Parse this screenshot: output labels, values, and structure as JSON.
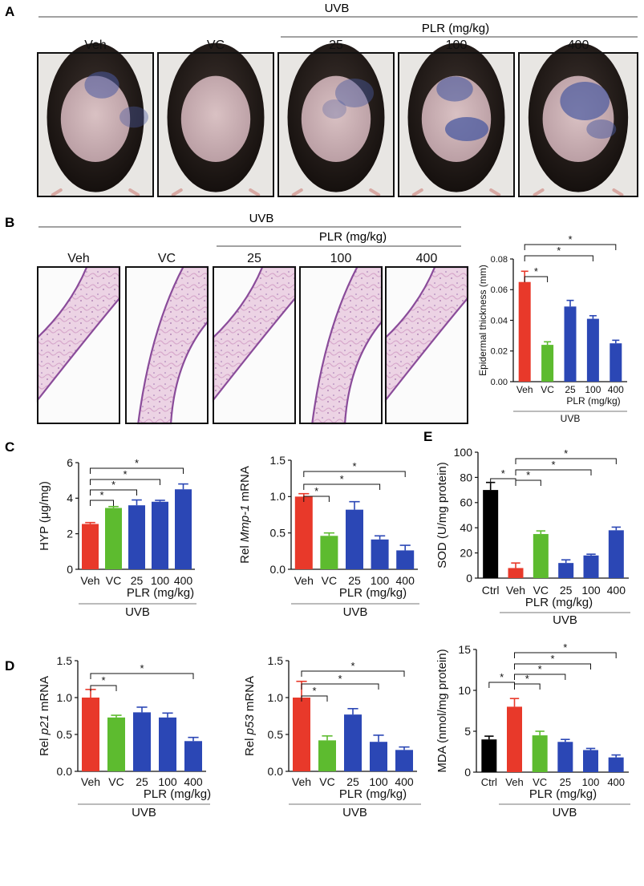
{
  "panels": {
    "A": {
      "letter": "A",
      "group_label": "UVB",
      "sub_label": "PLR (mg/kg)",
      "photo_labels": [
        "Veh",
        "VC",
        "25",
        "100",
        "400"
      ]
    },
    "B": {
      "letter": "B",
      "group_label": "UVB",
      "sub_label": "PLR (mg/kg)",
      "photo_labels": [
        "Veh",
        "VC",
        "25",
        "100",
        "400"
      ]
    },
    "C": {
      "letter": "C"
    },
    "D": {
      "letter": "D"
    },
    "E": {
      "letter": "E"
    }
  },
  "colors": {
    "Ctrl": "#000000",
    "Veh": "#e8392a",
    "VC": "#5dbb2f",
    "PLR": "#2b47b5"
  },
  "chart_data": [
    {
      "id": "epidermal",
      "type": "bar",
      "categories": [
        "Veh",
        "VC",
        "25",
        "100",
        "400"
      ],
      "values": [
        0.065,
        0.024,
        0.049,
        0.041,
        0.025
      ],
      "errors": [
        0.007,
        0.002,
        0.004,
        0.002,
        0.002
      ],
      "ylabel": "Epidermal thickness (mm)",
      "ylim": [
        0,
        0.08
      ],
      "yticks": [
        "0.00",
        "0.02",
        "0.04",
        "0.06",
        "0.08"
      ],
      "sub_group_label": "PLR (mg/kg)",
      "group_label": "UVB",
      "significance": [
        "*",
        "*",
        "*"
      ]
    },
    {
      "id": "hyp",
      "type": "bar",
      "categories": [
        "Veh",
        "VC",
        "25",
        "100",
        "400"
      ],
      "values": [
        2.55,
        3.45,
        3.6,
        3.8,
        4.5
      ],
      "errors": [
        0.08,
        0.08,
        0.3,
        0.08,
        0.3
      ],
      "ylabel": "HYP (μg/mg)",
      "ylim": [
        0,
        6
      ],
      "yticks": [
        "0",
        "2",
        "4",
        "6"
      ],
      "sub_group_label": "PLR (mg/kg)",
      "group_label": "UVB",
      "significance": [
        "*",
        "*",
        "*",
        "*"
      ]
    },
    {
      "id": "mmp1",
      "type": "bar",
      "categories": [
        "Veh",
        "VC",
        "25",
        "100",
        "400"
      ],
      "values": [
        1.0,
        0.46,
        0.82,
        0.41,
        0.26
      ],
      "errors": [
        0.04,
        0.04,
        0.11,
        0.05,
        0.07
      ],
      "ylabel_prefix": "Rel ",
      "ylabel_gene": "Mmp-1",
      "ylabel_suffix": " mRNA",
      "ylim": [
        0,
        1.5
      ],
      "yticks": [
        "0.0",
        "0.5",
        "1.0",
        "1.5"
      ],
      "sub_group_label": "PLR (mg/kg)",
      "group_label": "UVB",
      "significance": [
        "*",
        "*",
        "*",
        "*"
      ]
    },
    {
      "id": "sod",
      "type": "bar",
      "categories": [
        "Ctrl",
        "Veh",
        "VC",
        "25",
        "100",
        "400"
      ],
      "values": [
        70,
        8,
        35,
        12,
        18,
        38
      ],
      "errors": [
        6,
        4,
        2.5,
        2.5,
        1,
        2.5
      ],
      "ylabel": "SOD (U/mg protein)",
      "ylim": [
        0,
        100
      ],
      "yticks": [
        "0",
        "20",
        "40",
        "60",
        "80",
        "100"
      ],
      "sub_group_label": "PLR (mg/kg)",
      "group_label": "UVB",
      "significance": [
        "*",
        "*",
        "*",
        "*",
        "*"
      ]
    },
    {
      "id": "p21",
      "type": "bar",
      "categories": [
        "Veh",
        "VC",
        "25",
        "100",
        "400"
      ],
      "values": [
        1.0,
        0.73,
        0.8,
        0.73,
        0.41
      ],
      "errors": [
        0.11,
        0.03,
        0.07,
        0.06,
        0.05
      ],
      "ylabel_prefix": "Rel ",
      "ylabel_gene": "p21",
      "ylabel_suffix": " mRNA",
      "ylim": [
        0,
        1.5
      ],
      "yticks": [
        "0.0",
        "0.5",
        "1.0",
        "1.5"
      ],
      "sub_group_label": "PLR (mg/kg)",
      "group_label": "UVB",
      "significance": [
        "*",
        "*"
      ]
    },
    {
      "id": "p53",
      "type": "bar",
      "categories": [
        "Veh",
        "VC",
        "25",
        "100",
        "400"
      ],
      "values": [
        1.0,
        0.42,
        0.77,
        0.4,
        0.29
      ],
      "errors": [
        0.22,
        0.06,
        0.08,
        0.09,
        0.04
      ],
      "ylabel_prefix": "Rel ",
      "ylabel_gene": "p53",
      "ylabel_suffix": " mRNA",
      "ylim": [
        0,
        1.5
      ],
      "yticks": [
        "0.0",
        "0.5",
        "1.0",
        "1.5"
      ],
      "sub_group_label": "PLR (mg/kg)",
      "group_label": "UVB",
      "significance": [
        "*",
        "*",
        "*"
      ]
    },
    {
      "id": "mda",
      "type": "bar",
      "categories": [
        "Ctrl",
        "Veh",
        "VC",
        "25",
        "100",
        "400"
      ],
      "values": [
        4.0,
        8.0,
        4.5,
        3.7,
        2.7,
        1.8
      ],
      "errors": [
        0.4,
        1.0,
        0.5,
        0.3,
        0.2,
        0.3
      ],
      "ylabel": "MDA (nmol/mg protein)",
      "ylim": [
        0,
        15
      ],
      "yticks": [
        "0",
        "5",
        "10",
        "15"
      ],
      "sub_group_label": "PLR (mg/kg)",
      "group_label": "UVB",
      "significance": [
        "*",
        "*",
        "*",
        "*",
        "*"
      ]
    }
  ]
}
